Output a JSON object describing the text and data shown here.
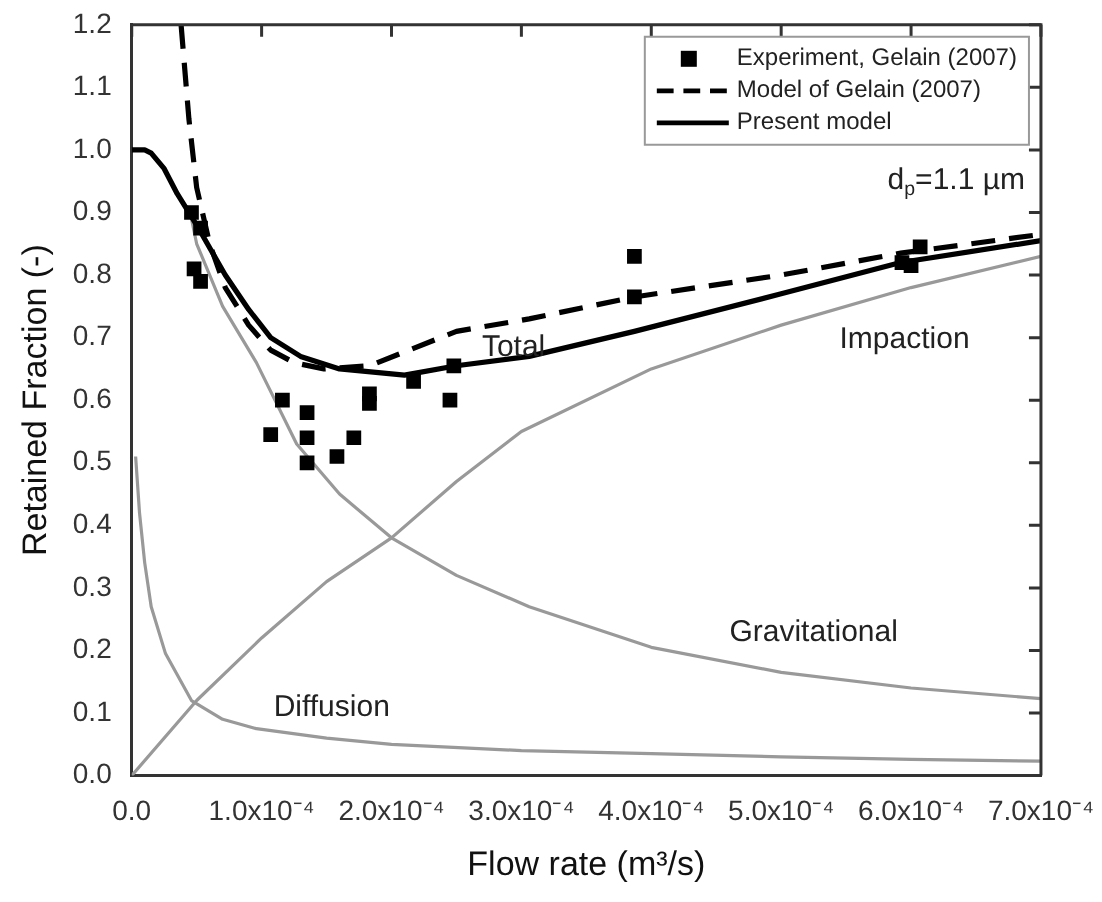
{
  "chart_data": {
    "type": "line",
    "xlabel": "Flow rate (m³/s)",
    "ylabel": "Retained Fraction (-)",
    "xlim": [
      0,
      0.0007
    ],
    "ylim": [
      0,
      1.2
    ],
    "xticks": [
      {
        "value": 0,
        "label": "0.0"
      },
      {
        "value": 0.0001,
        "label": "1.0x10⁻⁴"
      },
      {
        "value": 0.0002,
        "label": "2.0x10⁻⁴"
      },
      {
        "value": 0.0003,
        "label": "3.0x10⁻⁴"
      },
      {
        "value": 0.0004,
        "label": "4.0x10⁻⁴"
      },
      {
        "value": 0.0005,
        "label": "5.0x10⁻⁴"
      },
      {
        "value": 0.0006,
        "label": "6.0x10⁻⁴"
      },
      {
        "value": 0.0007,
        "label": "7.0x10⁻⁴"
      }
    ],
    "yticks": [
      {
        "value": 0,
        "label": "0.0"
      },
      {
        "value": 0.1,
        "label": "0.1"
      },
      {
        "value": 0.2,
        "label": "0.2"
      },
      {
        "value": 0.3,
        "label": "0.3"
      },
      {
        "value": 0.4,
        "label": "0.4"
      },
      {
        "value": 0.5,
        "label": "0.5"
      },
      {
        "value": 0.6,
        "label": "0.6"
      },
      {
        "value": 0.7,
        "label": "0.7"
      },
      {
        "value": 0.8,
        "label": "0.8"
      },
      {
        "value": 0.9,
        "label": "0.9"
      },
      {
        "value": 1.0,
        "label": "1.0"
      },
      {
        "value": 1.1,
        "label": "1.1"
      },
      {
        "value": 1.2,
        "label": "1.2"
      }
    ],
    "grid": false,
    "legend": "top right",
    "series": [
      {
        "name": "Experiment, Gelain (2007)",
        "type": "scatter",
        "marker": "square",
        "color": "#000000",
        "x": [
          4.6e-05,
          5e-05,
          5.3e-05,
          4.8e-05,
          5.3e-05,
          0.000116,
          0.000135,
          0.000107,
          0.000135,
          0.000135,
          0.000158,
          0.000171,
          0.000183,
          0.000183,
          0.000217,
          0.000248,
          0.000245,
          0.000387,
          0.000387,
          0.000593,
          0.0006,
          0.000607
        ],
        "values": [
          0.9,
          null,
          0.875,
          0.81,
          0.79,
          0.6,
          0.58,
          0.545,
          0.54,
          0.5,
          0.51,
          0.54,
          0.61,
          0.595,
          0.63,
          0.655,
          0.6,
          0.83,
          0.765,
          0.82,
          0.815,
          0.845
        ]
      },
      {
        "name": "Model of Gelain (2007)",
        "marker": "none",
        "line_style": "dashed",
        "color": "#000000",
        "x": [
          3.8e-05,
          4.4e-05,
          5e-05,
          6e-05,
          7.2e-05,
          9e-05,
          0.000107,
          0.000125,
          0.000148,
          0.000183,
          0.00025,
          0.000306,
          0.000387,
          0.0005,
          0.000592,
          0.0007
        ],
        "values": [
          1.2,
          1.05,
          0.94,
          0.85,
          0.78,
          0.72,
          0.68,
          0.66,
          0.65,
          0.655,
          0.71,
          0.73,
          0.765,
          0.8,
          0.835,
          0.865
        ]
      },
      {
        "name": "Present model",
        "marker": "none",
        "line_style": "solid",
        "color": "#000000",
        "x": [
          0,
          1e-05,
          1.5e-05,
          2.5e-05,
          3.5e-05,
          5e-05,
          7.2e-05,
          9e-05,
          0.000107,
          0.00013,
          0.00016,
          0.00021,
          0.00025,
          0.000306,
          0.000387,
          0.0005,
          0.000592,
          0.0007
        ],
        "values": [
          1.0,
          1.0,
          0.995,
          0.97,
          0.93,
          0.88,
          0.8,
          0.745,
          0.7,
          0.67,
          0.65,
          0.64,
          0.655,
          0.67,
          0.71,
          0.77,
          0.82,
          0.855
        ]
      },
      {
        "marker": "none",
        "line_style": "solid",
        "color": "#999999",
        "x": [
          3e-06,
          6e-06,
          1e-05,
          1.5e-05,
          2.6e-05,
          4.6e-05,
          7e-05,
          9.6e-05,
          0.00015,
          0.0002,
          0.0003,
          0.0004,
          0.0005,
          0.0006,
          0.0007
        ],
        "values": [
          0.51,
          0.42,
          0.34,
          0.27,
          0.195,
          0.12,
          0.09,
          0.075,
          0.06,
          0.05,
          0.04,
          0.035,
          0.03,
          0.026,
          0.023
        ]
      },
      {
        "marker": "none",
        "line_style": "solid",
        "color": "#999999",
        "x": [
          0,
          5e-05,
          0.0001,
          0.00015,
          0.0002,
          0.00025,
          0.0003,
          0.0004,
          0.0005,
          0.0006,
          0.0007
        ],
        "values": [
          0,
          0.12,
          0.22,
          0.31,
          0.38,
          0.47,
          0.55,
          0.65,
          0.72,
          0.78,
          0.83
        ]
      },
      {
        "marker": "none",
        "line_style": "solid",
        "color": "#999999",
        "x": [
          4.5e-05,
          5e-05,
          7e-05,
          9.6e-05,
          0.000127,
          0.00016,
          0.0002,
          0.00025,
          0.000306,
          0.0004,
          0.0005,
          0.0006,
          0.0007
        ],
        "values": [
          0.9,
          0.85,
          0.75,
          0.66,
          0.53,
          0.45,
          0.38,
          0.32,
          0.27,
          0.205,
          0.165,
          0.14,
          0.123
        ]
      }
    ],
    "annotations": [
      "Total",
      "Impaction",
      "Gravitational",
      "Diffusion",
      "d$_{p}$=1.1 µm"
    ]
  }
}
